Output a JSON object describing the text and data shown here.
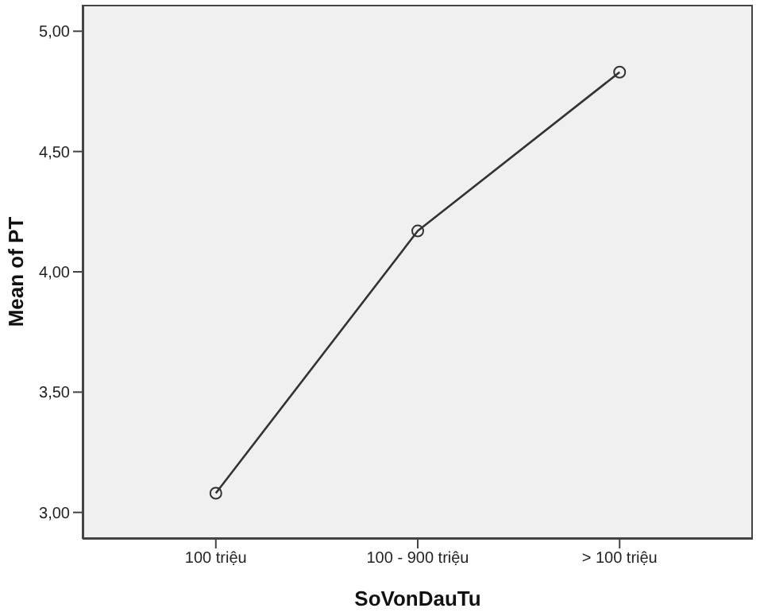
{
  "chart_data": {
    "type": "line",
    "xlabel": "SoVonDauTu",
    "ylabel": "Mean of PT",
    "categories": [
      "100 triệu",
      "100 - 900 triệu",
      "> 100 triệu"
    ],
    "series": [
      {
        "color": "#333333",
        "values": [
          3.08,
          4.17,
          4.83
        ]
      }
    ],
    "ylim": [
      2.89,
      5.11
    ],
    "yticks": [
      {
        "value": 3,
        "label": "3,00"
      },
      {
        "value": 3.5,
        "label": "3,50"
      },
      {
        "value": 4,
        "label": "4,00"
      },
      {
        "value": 4.5,
        "label": "4,50"
      },
      {
        "value": 5,
        "label": "5,00"
      }
    ],
    "marker": "circle",
    "line_style": "solid",
    "grid": false,
    "legend": false
  }
}
